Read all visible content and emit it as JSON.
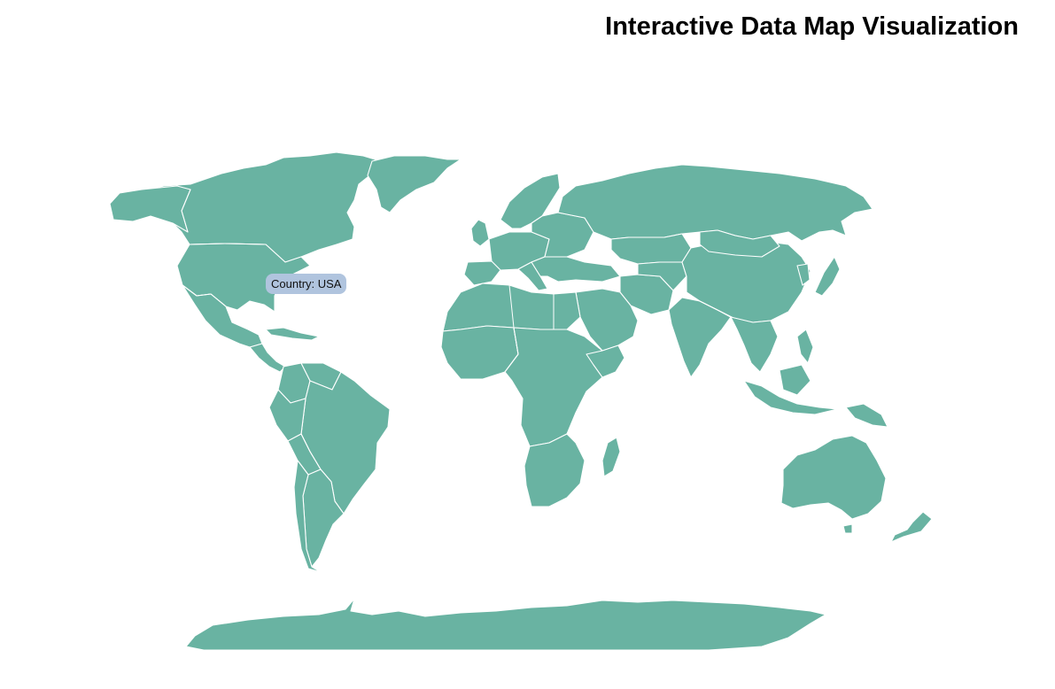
{
  "title": "Interactive Data Map Visualization",
  "tooltip": {
    "text": "Country: USA"
  },
  "colors": {
    "land": "#69b3a2",
    "border": "#ffffff",
    "background": "#ffffff",
    "tooltip_bg": "#b0c4de"
  }
}
